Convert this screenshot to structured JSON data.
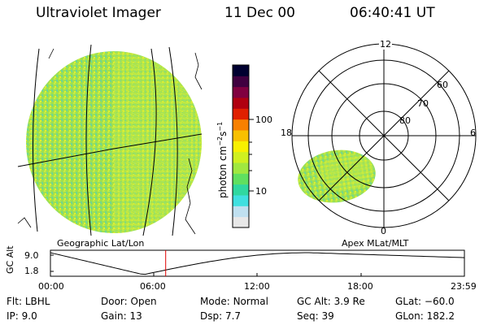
{
  "header": {
    "instrument": "Ultraviolet Imager",
    "date": "11 Dec 00",
    "time": "06:40:41 UT"
  },
  "geo_panel": {
    "label": "Geographic Lat/Lon"
  },
  "apex_panel": {
    "label": "Apex MLat/MLT",
    "mlt_labels": [
      "12",
      "18",
      "6",
      "0"
    ],
    "lat_labels": [
      "60",
      "70",
      "80"
    ]
  },
  "colorbar": {
    "unit_label": "photon cm",
    "unit_exp1": "−2",
    "unit_s": "s",
    "unit_exp2": "−1",
    "tick_labels": [
      "100",
      "10"
    ],
    "colors": [
      "#e8e8e8",
      "#c0e0f0",
      "#40e0e0",
      "#30d8a0",
      "#60e060",
      "#a0e840",
      "#d0f020",
      "#f8f000",
      "#f8c000",
      "#f88000",
      "#e02000",
      "#b00010",
      "#800040",
      "#400040",
      "#000030"
    ]
  },
  "timeline": {
    "axis_label": "GC Alt",
    "y_ticks": [
      "9.0",
      "1.8"
    ],
    "x_ticks": [
      "00:00",
      "06:00",
      "12:00",
      "18:00",
      "23:59"
    ],
    "current_hours": 6.68
  },
  "footer": {
    "row1": [
      {
        "key": "Flt:",
        "val": "LBHL"
      },
      {
        "key": "Door:",
        "val": "Open"
      },
      {
        "key": "Mode:",
        "val": "Normal"
      },
      {
        "key": "GC Alt:",
        "val": "3.9 Re"
      },
      {
        "key": "GLat:",
        "val": "−60.0"
      }
    ],
    "row2": [
      {
        "key": "IP:",
        "val": "9.0"
      },
      {
        "key": "Gain:",
        "val": "13"
      },
      {
        "key": "Dsp:",
        "val": "7.7"
      },
      {
        "key": "Seq:",
        "val": "39"
      },
      {
        "key": "GLon:",
        "val": "182.2"
      }
    ]
  }
}
